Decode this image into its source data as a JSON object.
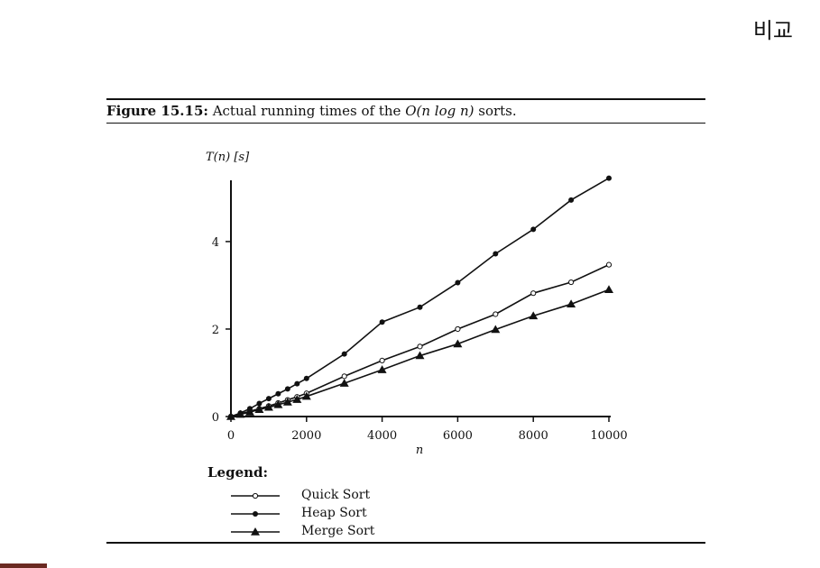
{
  "slide_title": "비교",
  "caption": {
    "figure": "Figure 15.15:",
    "text_before": " Actual running times of the ",
    "math": "O(n log n)",
    "text_after": " sorts."
  },
  "legend_title": "Legend:",
  "colors": {
    "ink": "#111111",
    "corner_tab": "#6b2a22"
  },
  "chart_data": {
    "type": "line",
    "ylabel": "T(n) [s]",
    "xlabel": "n",
    "xlim": [
      0,
      10000
    ],
    "ylim": [
      0,
      5.4
    ],
    "xticks": [
      0,
      2000,
      4000,
      6000,
      8000,
      10000
    ],
    "yticks": [
      0,
      2,
      4
    ],
    "grid": false,
    "legend_placement": "below",
    "x": [
      0,
      250,
      500,
      750,
      1000,
      1250,
      1500,
      1750,
      2000,
      3000,
      4000,
      5000,
      6000,
      7000,
      8000,
      9000,
      10000
    ],
    "series": [
      {
        "name": "Quick Sort",
        "marker": "open-circle",
        "values": [
          0,
          0.06,
          0.12,
          0.18,
          0.24,
          0.31,
          0.38,
          0.45,
          0.53,
          0.92,
          1.28,
          1.6,
          2.0,
          2.34,
          2.82,
          3.07,
          3.47
        ]
      },
      {
        "name": "Heap Sort",
        "marker": "filled-circle",
        "values": [
          0,
          0.08,
          0.18,
          0.3,
          0.41,
          0.52,
          0.63,
          0.75,
          0.87,
          1.43,
          2.16,
          2.5,
          3.06,
          3.72,
          4.28,
          4.95,
          5.45
        ]
      },
      {
        "name": "Merge Sort",
        "marker": "filled-triangle",
        "values": [
          0,
          0.05,
          0.1,
          0.16,
          0.21,
          0.27,
          0.33,
          0.39,
          0.46,
          0.76,
          1.07,
          1.39,
          1.66,
          1.99,
          2.3,
          2.57,
          2.9
        ]
      }
    ]
  }
}
